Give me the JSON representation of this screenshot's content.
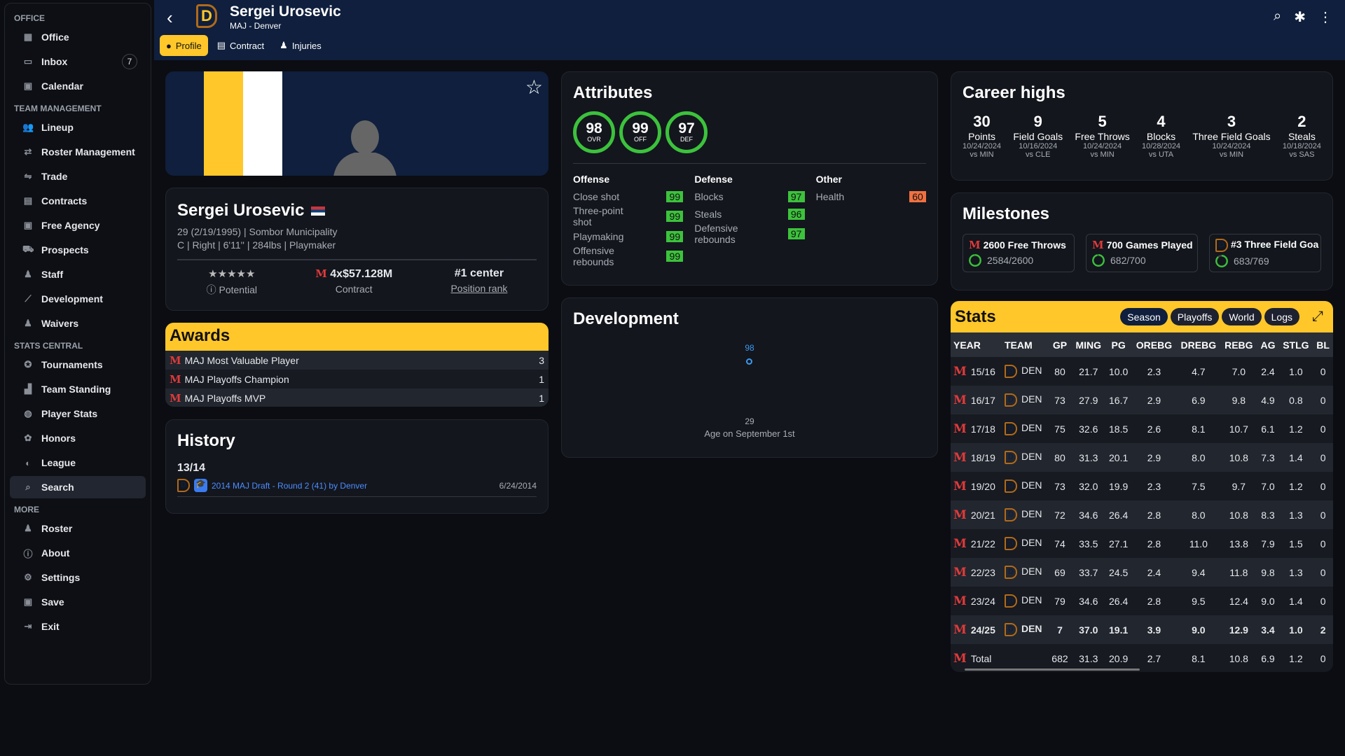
{
  "sidebar": {
    "sections": [
      {
        "title": "OFFICE",
        "items": [
          {
            "label": "Office",
            "icon": "building-icon",
            "glyph": "▦"
          },
          {
            "label": "Inbox",
            "icon": "inbox-icon",
            "glyph": "▭",
            "badge": "7"
          },
          {
            "label": "Calendar",
            "icon": "calendar-icon",
            "glyph": "▣"
          }
        ]
      },
      {
        "title": "TEAM MANAGEMENT",
        "items": [
          {
            "label": "Lineup",
            "icon": "users-icon",
            "glyph": "👥"
          },
          {
            "label": "Roster Management",
            "icon": "swap-icon",
            "glyph": "⇄"
          },
          {
            "label": "Trade",
            "icon": "handshake-icon",
            "glyph": "⇋"
          },
          {
            "label": "Contracts",
            "icon": "contract-icon",
            "glyph": "▤"
          },
          {
            "label": "Free Agency",
            "icon": "money-icon",
            "glyph": "▣"
          },
          {
            "label": "Prospects",
            "icon": "binoculars-icon",
            "glyph": "⛟"
          },
          {
            "label": "Staff",
            "icon": "person-icon",
            "glyph": "♟"
          },
          {
            "label": "Development",
            "icon": "chart-line-icon",
            "glyph": "⟋"
          },
          {
            "label": "Waivers",
            "icon": "user-clock-icon",
            "glyph": "♟"
          }
        ]
      },
      {
        "title": "STATS CENTRAL",
        "items": [
          {
            "label": "Tournaments",
            "icon": "medal-icon",
            "glyph": "✪"
          },
          {
            "label": "Team Standing",
            "icon": "podium-icon",
            "glyph": "▟"
          },
          {
            "label": "Player Stats",
            "icon": "basketball-icon",
            "glyph": "◍"
          },
          {
            "label": "Honors",
            "icon": "award-icon",
            "glyph": "✿"
          },
          {
            "label": "League",
            "icon": "globe-icon",
            "glyph": "◐"
          },
          {
            "label": "Search",
            "icon": "search-icon",
            "glyph": "⌕",
            "active": true
          }
        ]
      },
      {
        "title": "MORE",
        "items": [
          {
            "label": "Roster",
            "icon": "user-edit-icon",
            "glyph": "♟"
          },
          {
            "label": "About",
            "icon": "info-icon",
            "glyph": "ⓘ"
          },
          {
            "label": "Settings",
            "icon": "gear-icon",
            "glyph": "⚙"
          },
          {
            "label": "Save",
            "icon": "floppy-icon",
            "glyph": "▣"
          },
          {
            "label": "Exit",
            "icon": "exit-icon",
            "glyph": "⇥"
          }
        ]
      }
    ]
  },
  "header": {
    "name": "Sergei Urosevic",
    "subtitle": "MAJ - Denver",
    "tabs": [
      {
        "label": "Profile",
        "icon": "user-circle-icon"
      },
      {
        "label": "Contract",
        "icon": "document-icon"
      },
      {
        "label": "Injuries",
        "icon": "injury-icon"
      }
    ]
  },
  "colors": {
    "navy": "#0f1f3d",
    "gold": "#ffc72a",
    "green": "#3cc23c",
    "orange": "#f07040"
  },
  "player": {
    "name": "Sergei Urosevic",
    "flag": "serbia",
    "line1": "29 (2/19/1995) | Sombor Municipality",
    "line2": "C | Right | 6'11'' | 284lbs | Playmaker",
    "potential_stars": 5,
    "potential_label": "Potential",
    "contract": "4x$57.128M",
    "contract_label": "Contract",
    "rank": "#1 center",
    "rank_label": "Position rank"
  },
  "awards": {
    "title": "Awards",
    "items": [
      {
        "name": "MAJ Most Valuable Player",
        "count": "3"
      },
      {
        "name": "MAJ Playoffs Champion",
        "count": "1"
      },
      {
        "name": "MAJ Playoffs MVP",
        "count": "1"
      }
    ]
  },
  "history": {
    "title": "History",
    "season": "13/14",
    "event": "2014 MAJ Draft - Round 2 (41) by Denver",
    "date": "6/24/2014"
  },
  "attributes": {
    "title": "Attributes",
    "rings": [
      {
        "value": "98",
        "label": "OVR"
      },
      {
        "value": "99",
        "label": "OFF"
      },
      {
        "value": "97",
        "label": "DEF"
      }
    ],
    "groups": [
      {
        "title": "Offense",
        "items": [
          {
            "name": "Close shot",
            "value": "99"
          },
          {
            "name": "Three-point shot",
            "value": "99"
          },
          {
            "name": "Playmaking",
            "value": "99"
          },
          {
            "name": "Offensive rebounds",
            "value": "99"
          }
        ]
      },
      {
        "title": "Defense",
        "items": [
          {
            "name": "Blocks",
            "value": "97"
          },
          {
            "name": "Steals",
            "value": "96"
          },
          {
            "name": "Defensive rebounds",
            "value": "97"
          }
        ]
      },
      {
        "title": "Other",
        "items": [
          {
            "name": "Health",
            "value": "60",
            "color": "#f07040"
          }
        ]
      }
    ]
  },
  "development": {
    "title": "Development",
    "point_value": "98",
    "age": "29",
    "xlabel": "Age on September 1st"
  },
  "career_highs": {
    "title": "Career highs",
    "items": [
      {
        "value": "30",
        "label": "Points",
        "date": "10/24/2024",
        "opp": "vs MIN"
      },
      {
        "value": "9",
        "label": "Field Goals",
        "date": "10/16/2024",
        "opp": "vs CLE"
      },
      {
        "value": "5",
        "label": "Free Throws",
        "date": "10/24/2024",
        "opp": "vs MIN"
      },
      {
        "value": "4",
        "label": "Blocks",
        "date": "10/28/2024",
        "opp": "vs UTA"
      },
      {
        "value": "3",
        "label": "Three Field Goals",
        "date": "10/24/2024",
        "opp": "vs MIN"
      },
      {
        "value": "2",
        "label": "Steals",
        "date": "10/18/2024",
        "opp": "vs SAS"
      }
    ]
  },
  "milestones": {
    "title": "Milestones",
    "items": [
      {
        "title": "2600 Free Throws",
        "progress": "2584/2600",
        "fraction": 0.994,
        "logo": "M"
      },
      {
        "title": "700 Games Played",
        "progress": "682/700",
        "fraction": 0.974,
        "logo": "M"
      },
      {
        "title": "#3 Three Field Goa",
        "progress": "683/769",
        "fraction": 0.888,
        "logo": "D"
      }
    ]
  },
  "stats": {
    "title": "Stats",
    "filters": [
      "Season",
      "Playoffs",
      "World",
      "Logs"
    ],
    "active_filter": "Season",
    "columns": [
      "YEAR",
      "TEAM",
      "GP",
      "MING",
      "PG",
      "OREBG",
      "DREBG",
      "REBG",
      "AG",
      "STLG",
      "BL"
    ],
    "rows": [
      [
        "15/16",
        "DEN",
        "80",
        "21.7",
        "10.0",
        "2.3",
        "4.7",
        "7.0",
        "2.4",
        "1.0",
        "0"
      ],
      [
        "16/17",
        "DEN",
        "73",
        "27.9",
        "16.7",
        "2.9",
        "6.9",
        "9.8",
        "4.9",
        "0.8",
        "0"
      ],
      [
        "17/18",
        "DEN",
        "75",
        "32.6",
        "18.5",
        "2.6",
        "8.1",
        "10.7",
        "6.1",
        "1.2",
        "0"
      ],
      [
        "18/19",
        "DEN",
        "80",
        "31.3",
        "20.1",
        "2.9",
        "8.0",
        "10.8",
        "7.3",
        "1.4",
        "0"
      ],
      [
        "19/20",
        "DEN",
        "73",
        "32.0",
        "19.9",
        "2.3",
        "7.5",
        "9.7",
        "7.0",
        "1.2",
        "0"
      ],
      [
        "20/21",
        "DEN",
        "72",
        "34.6",
        "26.4",
        "2.8",
        "8.0",
        "10.8",
        "8.3",
        "1.3",
        "0"
      ],
      [
        "21/22",
        "DEN",
        "74",
        "33.5",
        "27.1",
        "2.8",
        "11.0",
        "13.8",
        "7.9",
        "1.5",
        "0"
      ],
      [
        "22/23",
        "DEN",
        "69",
        "33.7",
        "24.5",
        "2.4",
        "9.4",
        "11.8",
        "9.8",
        "1.3",
        "0"
      ],
      [
        "23/24",
        "DEN",
        "79",
        "34.6",
        "26.4",
        "2.8",
        "9.5",
        "12.4",
        "9.0",
        "1.4",
        "0"
      ],
      [
        "24/25",
        "DEN",
        "7",
        "37.0",
        "19.1",
        "3.9",
        "9.0",
        "12.9",
        "3.4",
        "1.0",
        "2"
      ]
    ],
    "total": [
      "Total",
      "",
      "682",
      "31.3",
      "20.9",
      "2.7",
      "8.1",
      "10.8",
      "6.9",
      "1.2",
      "0"
    ]
  }
}
